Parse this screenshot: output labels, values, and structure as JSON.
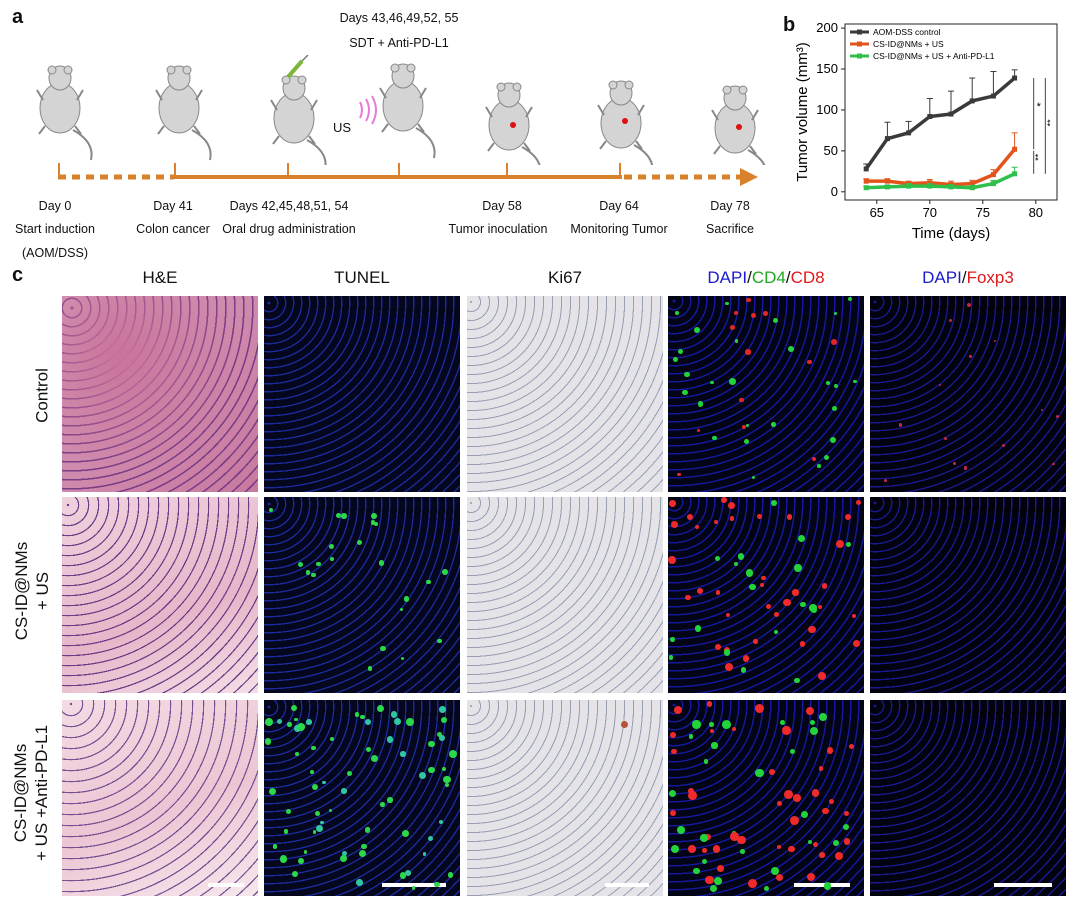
{
  "panel_a": {
    "letter": "a",
    "top_label_line1": "Days 43,46,49,52, 55",
    "top_label_line2": "SDT + Anti-PD-L1",
    "us_label": "US",
    "events": [
      {
        "day": "Day 0",
        "desc": "Start induction",
        "desc2": "(AOM/DSS)"
      },
      {
        "day": "Day 41",
        "desc": "Colon  cancer",
        "desc2": ""
      },
      {
        "day": "Days 42,45,48,51, 54",
        "desc": "Oral drug  administration",
        "desc2": ""
      },
      {
        "day": "Day 58",
        "desc": "Tumor  inoculation",
        "desc2": ""
      },
      {
        "day": "Day 64",
        "desc": "Monitoring Tumor",
        "desc2": ""
      },
      {
        "day": "Day 78",
        "desc": "Sacrifice",
        "desc2": ""
      }
    ],
    "colors": {
      "timeline": "#d9822b"
    }
  },
  "panel_b": {
    "letter": "b"
  },
  "chart_data": {
    "type": "line",
    "xlabel": "Time (days)",
    "ylabel": "Tumor volume (mm³)",
    "xlim": [
      62,
      82
    ],
    "ylim": [
      -10,
      205
    ],
    "xticks": [
      65,
      70,
      75,
      80
    ],
    "yticks": [
      0,
      50,
      100,
      150,
      200
    ],
    "x": [
      64,
      66,
      68,
      70,
      72,
      74,
      76,
      78
    ],
    "legend_position": "top-left",
    "series": [
      {
        "name": "AOM-DSS control",
        "color": "#3a3a3a",
        "values": [
          28,
          65,
          72,
          92,
          95,
          111,
          117,
          139
        ],
        "errors": [
          6,
          20,
          14,
          22,
          28,
          28,
          30,
          10
        ]
      },
      {
        "name": "CS-ID@NMs  + US",
        "color": "#e2541c",
        "values": [
          13,
          13,
          10,
          11,
          9,
          10,
          21,
          52
        ],
        "errors": [
          3,
          3,
          3,
          4,
          4,
          4,
          6,
          20
        ]
      },
      {
        "name": "CS-ID@NMs  + US + Anti-PD-L1",
        "color": "#2ec04a",
        "values": [
          5,
          6,
          7,
          7,
          6,
          5,
          10,
          22
        ],
        "errors": [
          2,
          2,
          3,
          3,
          3,
          3,
          4,
          8
        ]
      }
    ],
    "significance": [
      "*",
      "**",
      "**"
    ]
  },
  "panel_c": {
    "letter": "c",
    "columns": [
      "H&E",
      "TUNEL",
      "Ki67"
    ],
    "col4": {
      "p1": "DAPI",
      "s1": "/",
      "p2": "CD4",
      "s2": "/",
      "p3": "CD8"
    },
    "col5": {
      "p1": "DAPI",
      "s1": "/",
      "p2": "Foxp3"
    },
    "rows": [
      {
        "line1": "Control",
        "line2": ""
      },
      {
        "line1": "CS-ID@NMs",
        "line2": "+ US"
      },
      {
        "line1": "CS-ID@NMs",
        "line2": "+ US +Anti-PD-L1"
      }
    ],
    "colors": {
      "dapi": "#1a1ad0",
      "cd4": "#1fa81f",
      "cd8": "#e0191b",
      "foxp3": "#e0191b"
    }
  }
}
